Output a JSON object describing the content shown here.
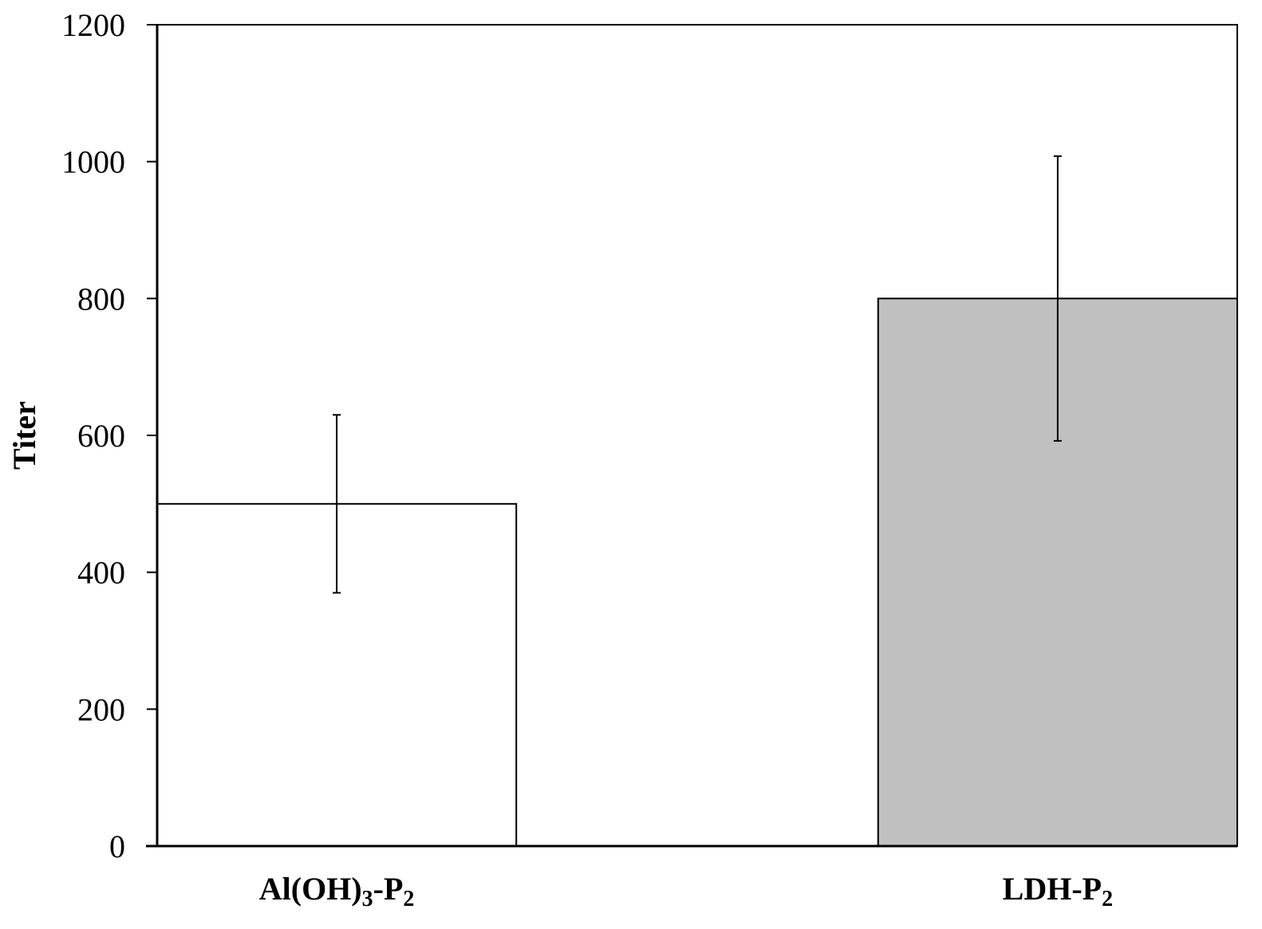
{
  "chart_data": {
    "type": "bar",
    "categories": [
      {
        "main": "Al(OH)",
        "sub1": "3",
        "mid": "-P",
        "sub2": "2"
      },
      {
        "main": "LDH-P",
        "sub1": "2",
        "mid": "",
        "sub2": ""
      }
    ],
    "values": [
      500,
      800
    ],
    "errors": [
      130,
      208
    ],
    "bar_colors": [
      "#ffffff",
      "#c0c0c0"
    ],
    "ylabel": "Titer",
    "xlabel": "",
    "ylim": [
      0,
      1200
    ],
    "yticks": [
      0,
      200,
      400,
      600,
      800,
      1000,
      1200
    ],
    "grid": false,
    "legend": "none"
  }
}
